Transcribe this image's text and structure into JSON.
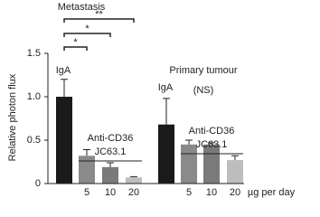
{
  "chart_data": {
    "type": "bar",
    "y_label": "Relative photon flux",
    "x_unit_label": "µg per day",
    "categories": [
      null,
      "5",
      "10",
      "20",
      null,
      "5",
      "10",
      "20"
    ],
    "values": [
      1.0,
      0.32,
      0.19,
      0.07,
      0.68,
      0.45,
      0.45,
      0.27
    ],
    "errors": [
      0.2,
      0.07,
      0.05,
      0.01,
      0.3,
      0.05,
      0.02,
      0.05
    ],
    "colors": [
      "#1a1a1a",
      "#8a8a8a",
      "#7a7a7a",
      "#bdbdbd",
      "#1a1a1a",
      "#8a8a8a",
      "#7a7a7a",
      "#bdbdbd"
    ],
    "ylim": [
      0,
      1.5
    ],
    "yticks": [
      0,
      0.5,
      {
        "value": 1,
        "label": "1.0"
      },
      1.5
    ],
    "groups": [
      {
        "title": "Metastasis",
        "control": "IgA",
        "treatment": [
          "Anti-CD36",
          "JC63.1"
        ]
      },
      {
        "title": "Primary tumour",
        "note": "(NS)",
        "control": "IgA",
        "treatment": [
          "Anti-CD36",
          "JC63.1"
        ]
      }
    ],
    "significance": [
      {
        "from": 0,
        "to": 3,
        "label": "**"
      },
      {
        "from": 0,
        "to": 2,
        "label": "*"
      },
      {
        "from": 0,
        "to": 1,
        "label": "*"
      }
    ]
  }
}
